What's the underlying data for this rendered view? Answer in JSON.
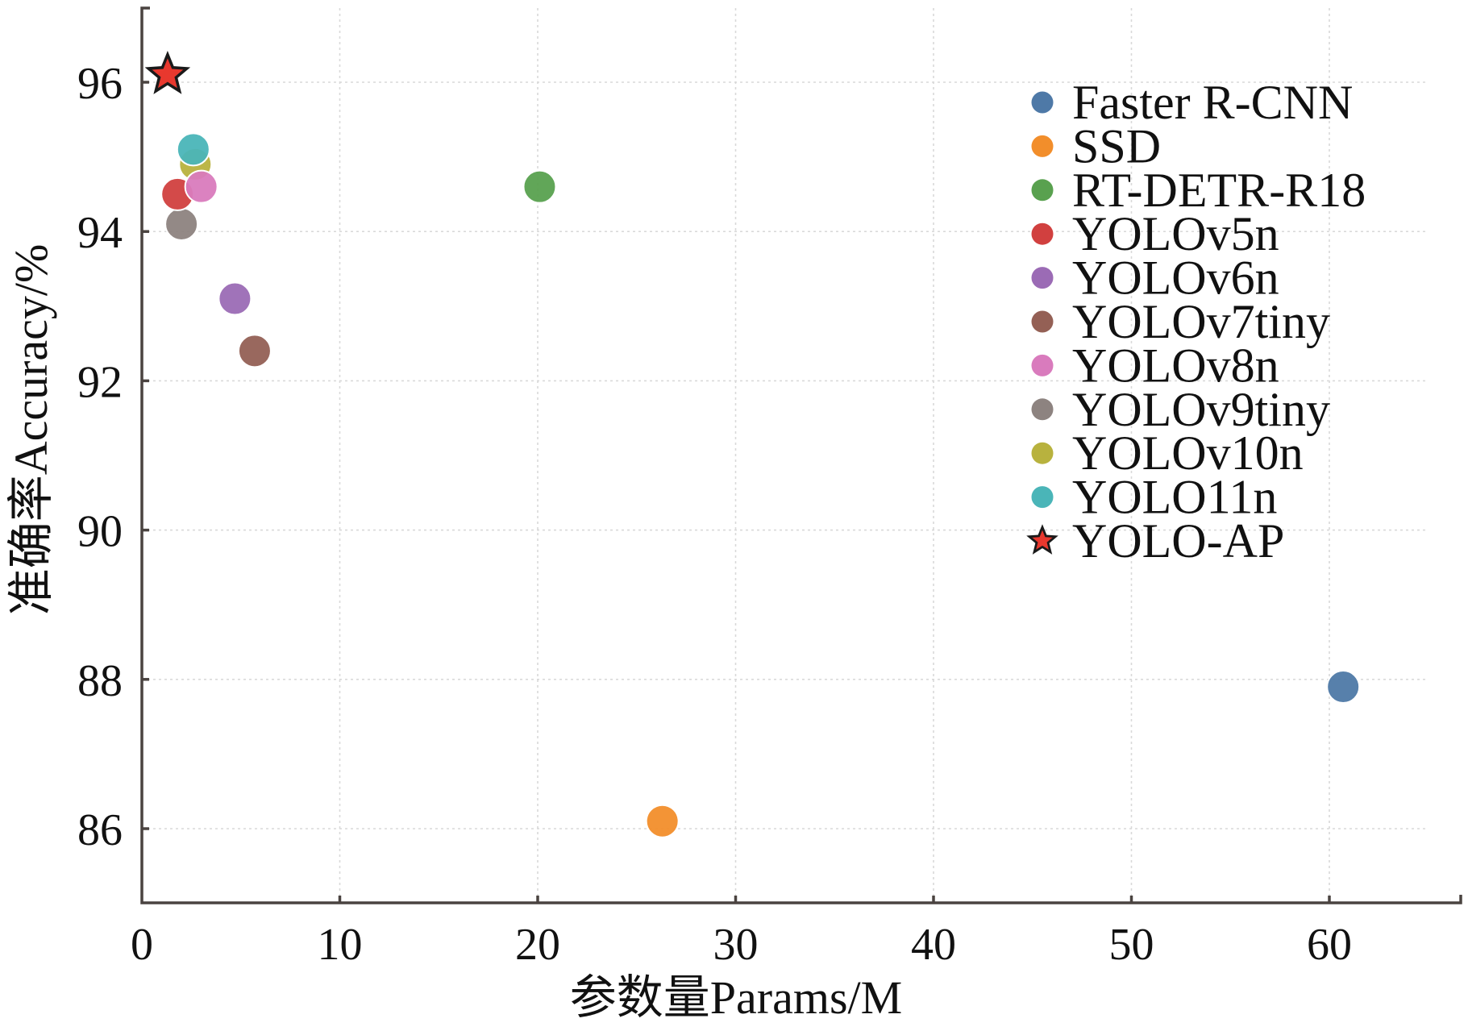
{
  "chart_data": {
    "type": "scatter",
    "title": "",
    "xlabel": "参数量Params/M",
    "ylabel": "准确率Accuracy/%",
    "xlim": [
      0,
      66.5
    ],
    "ylim": [
      85,
      97
    ],
    "xticks": [
      0,
      10,
      20,
      30,
      40,
      50,
      60
    ],
    "yticks": [
      86,
      88,
      90,
      92,
      94,
      96
    ],
    "grid": true,
    "legend_position": "top-right",
    "series": [
      {
        "name": "Faster R-CNN",
        "x": 60.7,
        "y": 87.9,
        "color": "#4e79a7",
        "marker": "circle"
      },
      {
        "name": "SSD",
        "x": 26.3,
        "y": 86.1,
        "color": "#f28e2b",
        "marker": "circle"
      },
      {
        "name": "RT-DETR-R18",
        "x": 20.1,
        "y": 94.6,
        "color": "#59a14f",
        "marker": "circle"
      },
      {
        "name": "YOLOv5n",
        "x": 1.8,
        "y": 94.5,
        "color": "#d1403f",
        "marker": "circle"
      },
      {
        "name": "YOLOv6n",
        "x": 4.7,
        "y": 93.1,
        "color": "#9b6bb5",
        "marker": "circle"
      },
      {
        "name": "YOLOv7tiny",
        "x": 5.7,
        "y": 92.4,
        "color": "#946055",
        "marker": "circle"
      },
      {
        "name": "YOLOv8n",
        "x": 3.0,
        "y": 94.6,
        "color": "#d97bbd",
        "marker": "circle"
      },
      {
        "name": "YOLOv9tiny",
        "x": 2.0,
        "y": 94.1,
        "color": "#8d8380",
        "marker": "circle"
      },
      {
        "name": "YOLOv10n",
        "x": 2.7,
        "y": 94.9,
        "color": "#b8b23e",
        "marker": "circle"
      },
      {
        "name": "YOLO11n",
        "x": 2.6,
        "y": 95.1,
        "color": "#4ab5b8",
        "marker": "circle"
      },
      {
        "name": "YOLO-AP",
        "x": 1.3,
        "y": 96.1,
        "color": "#e8382e",
        "marker": "star"
      }
    ]
  }
}
